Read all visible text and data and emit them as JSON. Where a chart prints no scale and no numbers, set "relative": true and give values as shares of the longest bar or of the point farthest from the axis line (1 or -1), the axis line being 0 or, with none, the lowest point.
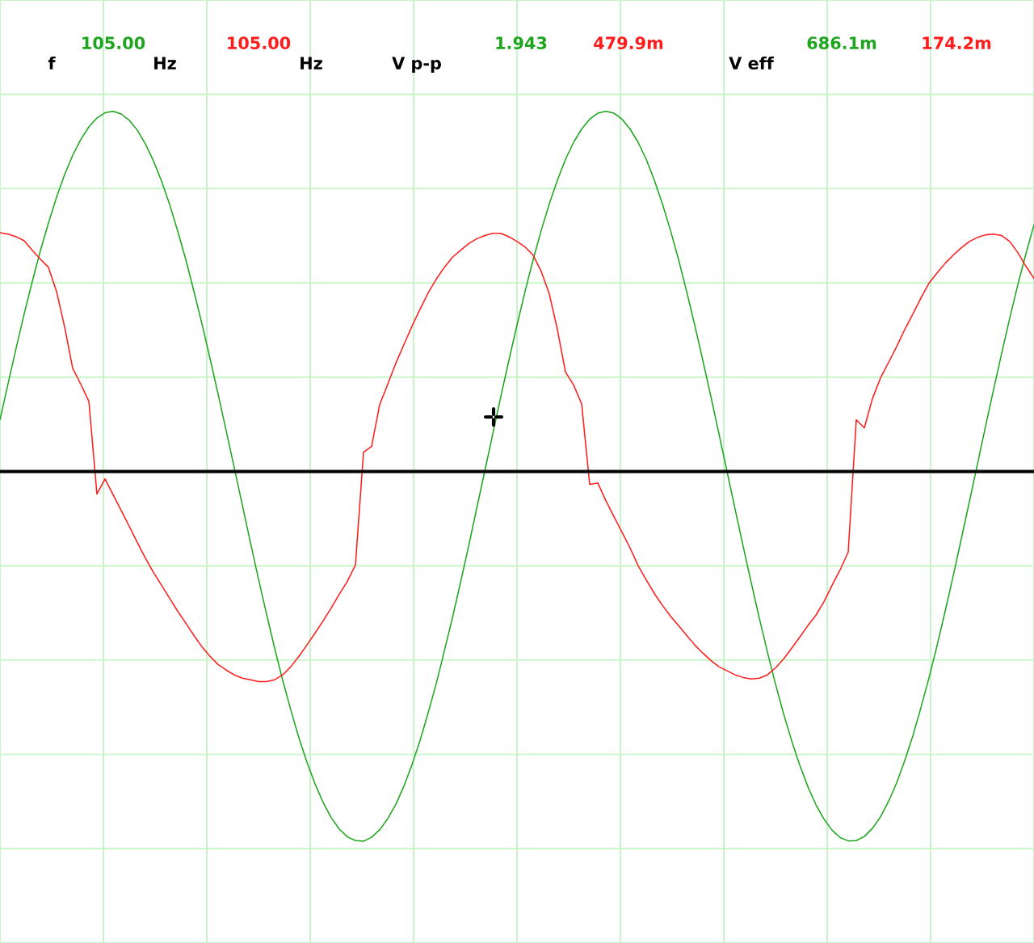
{
  "chart_data": {
    "type": "line",
    "relative": true,
    "categories": [
      null,
      null,
      null,
      null,
      null,
      null,
      null,
      null,
      null,
      null,
      null,
      null,
      null,
      null,
      null,
      null,
      null,
      null,
      null,
      null,
      null,
      null,
      null,
      null,
      null,
      null,
      null,
      null,
      null,
      null,
      null,
      null,
      null,
      null,
      null,
      null,
      null,
      null,
      null,
      null,
      null,
      null,
      null,
      null,
      null,
      null,
      null,
      null,
      null,
      null,
      null,
      null,
      null,
      null,
      null,
      null,
      null,
      null,
      null,
      null,
      null,
      null,
      null,
      null,
      null,
      null,
      null,
      null,
      null,
      null,
      null,
      null,
      null,
      null,
      null,
      null,
      null,
      null,
      null,
      null,
      null,
      null,
      null,
      null,
      null,
      null,
      null,
      null,
      null,
      null,
      null,
      null,
      null,
      null,
      null,
      null,
      null,
      null,
      null,
      null,
      null,
      null,
      null,
      null,
      null,
      null,
      null,
      null,
      null,
      null,
      null,
      null,
      null,
      null,
      null,
      null,
      null,
      null,
      null,
      null,
      null,
      null,
      null,
      null,
      null,
      null,
      null,
      null,
      null
    ],
    "series": [
      {
        "color": "#1ea51e",
        "values": [
          0.14,
          0.238,
          0.334,
          0.427,
          0.514,
          0.597,
          0.672,
          0.742,
          0.803,
          0.855,
          0.898,
          0.932,
          0.956,
          0.97,
          0.974,
          0.967,
          0.95,
          0.923,
          0.886,
          0.84,
          0.785,
          0.722,
          0.65,
          0.573,
          0.488,
          0.399,
          0.306,
          0.209,
          0.11,
          0.01,
          -0.091,
          -0.192,
          -0.291,
          -0.386,
          -0.478,
          -0.565,
          -0.645,
          -0.72,
          -0.786,
          -0.845,
          -0.895,
          -0.936,
          -0.967,
          -0.988,
          -0.998,
          -1.0,
          -0.989,
          -0.969,
          -0.939,
          -0.9,
          -0.851,
          -0.793,
          -0.727,
          -0.653,
          -0.574,
          -0.486,
          -0.396,
          -0.301,
          -0.203,
          -0.101,
          0.0,
          0.102,
          0.203,
          0.301,
          0.396,
          0.487,
          0.573,
          0.652,
          0.724,
          0.788,
          0.844,
          0.89,
          0.926,
          0.953,
          0.969,
          0.974,
          0.969,
          0.953,
          0.926,
          0.89,
          0.844,
          0.788,
          0.724,
          0.652,
          0.573,
          0.487,
          0.396,
          0.301,
          0.203,
          0.102,
          0.0,
          -0.102,
          -0.203,
          -0.301,
          -0.397,
          -0.488,
          -0.575,
          -0.655,
          -0.728,
          -0.794,
          -0.852,
          -0.901,
          -0.94,
          -0.97,
          -0.99,
          -0.999,
          -0.998,
          -0.987,
          -0.965,
          -0.934,
          -0.892,
          -0.842,
          -0.782,
          -0.715,
          -0.639,
          -0.558,
          -0.471,
          -0.378,
          -0.282,
          -0.182,
          -0.082,
          0.02,
          0.122,
          0.222,
          0.32,
          0.415,
          0.505,
          0.589,
          0.667
        ]
      },
      {
        "color": "#ff1c1c",
        "values": [
          0.646,
          0.642,
          0.635,
          0.624,
          0.598,
          0.574,
          0.552,
          0.487,
          0.391,
          0.279,
          0.236,
          0.19,
          -0.061,
          -0.02,
          -0.063,
          -0.105,
          -0.148,
          -0.192,
          -0.234,
          -0.273,
          -0.308,
          -0.343,
          -0.378,
          -0.41,
          -0.443,
          -0.474,
          -0.5,
          -0.522,
          -0.537,
          -0.55,
          -0.559,
          -0.563,
          -0.568,
          -0.568,
          -0.563,
          -0.55,
          -0.528,
          -0.5,
          -0.469,
          -0.437,
          -0.404,
          -0.369,
          -0.332,
          -0.297,
          -0.253,
          0.052,
          0.068,
          0.181,
          0.236,
          0.293,
          0.343,
          0.393,
          0.439,
          0.483,
          0.52,
          0.552,
          0.579,
          0.598,
          0.616,
          0.629,
          0.638,
          0.644,
          0.644,
          0.635,
          0.622,
          0.607,
          0.585,
          0.541,
          0.48,
          0.384,
          0.269,
          0.234,
          0.183,
          -0.035,
          -0.031,
          -0.079,
          -0.122,
          -0.164,
          -0.207,
          -0.255,
          -0.293,
          -0.33,
          -0.362,
          -0.391,
          -0.417,
          -0.443,
          -0.469,
          -0.491,
          -0.511,
          -0.528,
          -0.539,
          -0.55,
          -0.557,
          -0.561,
          -0.559,
          -0.55,
          -0.531,
          -0.507,
          -0.478,
          -0.448,
          -0.417,
          -0.389,
          -0.352,
          -0.308,
          -0.266,
          -0.218,
          0.14,
          0.118,
          0.197,
          0.253,
          0.295,
          0.338,
          0.384,
          0.426,
          0.469,
          0.509,
          0.537,
          0.563,
          0.585,
          0.605,
          0.622,
          0.633,
          0.64,
          0.642,
          0.638,
          0.622,
          0.592,
          0.555,
          0.522
        ]
      }
    ],
    "grid": true,
    "annotations": [
      "f",
      "105.00",
      "Hz",
      "105.00",
      "Hz",
      "V p-p",
      "1.943",
      "479.9m",
      "V eff",
      "686.1m",
      "174.2m"
    ]
  }
}
